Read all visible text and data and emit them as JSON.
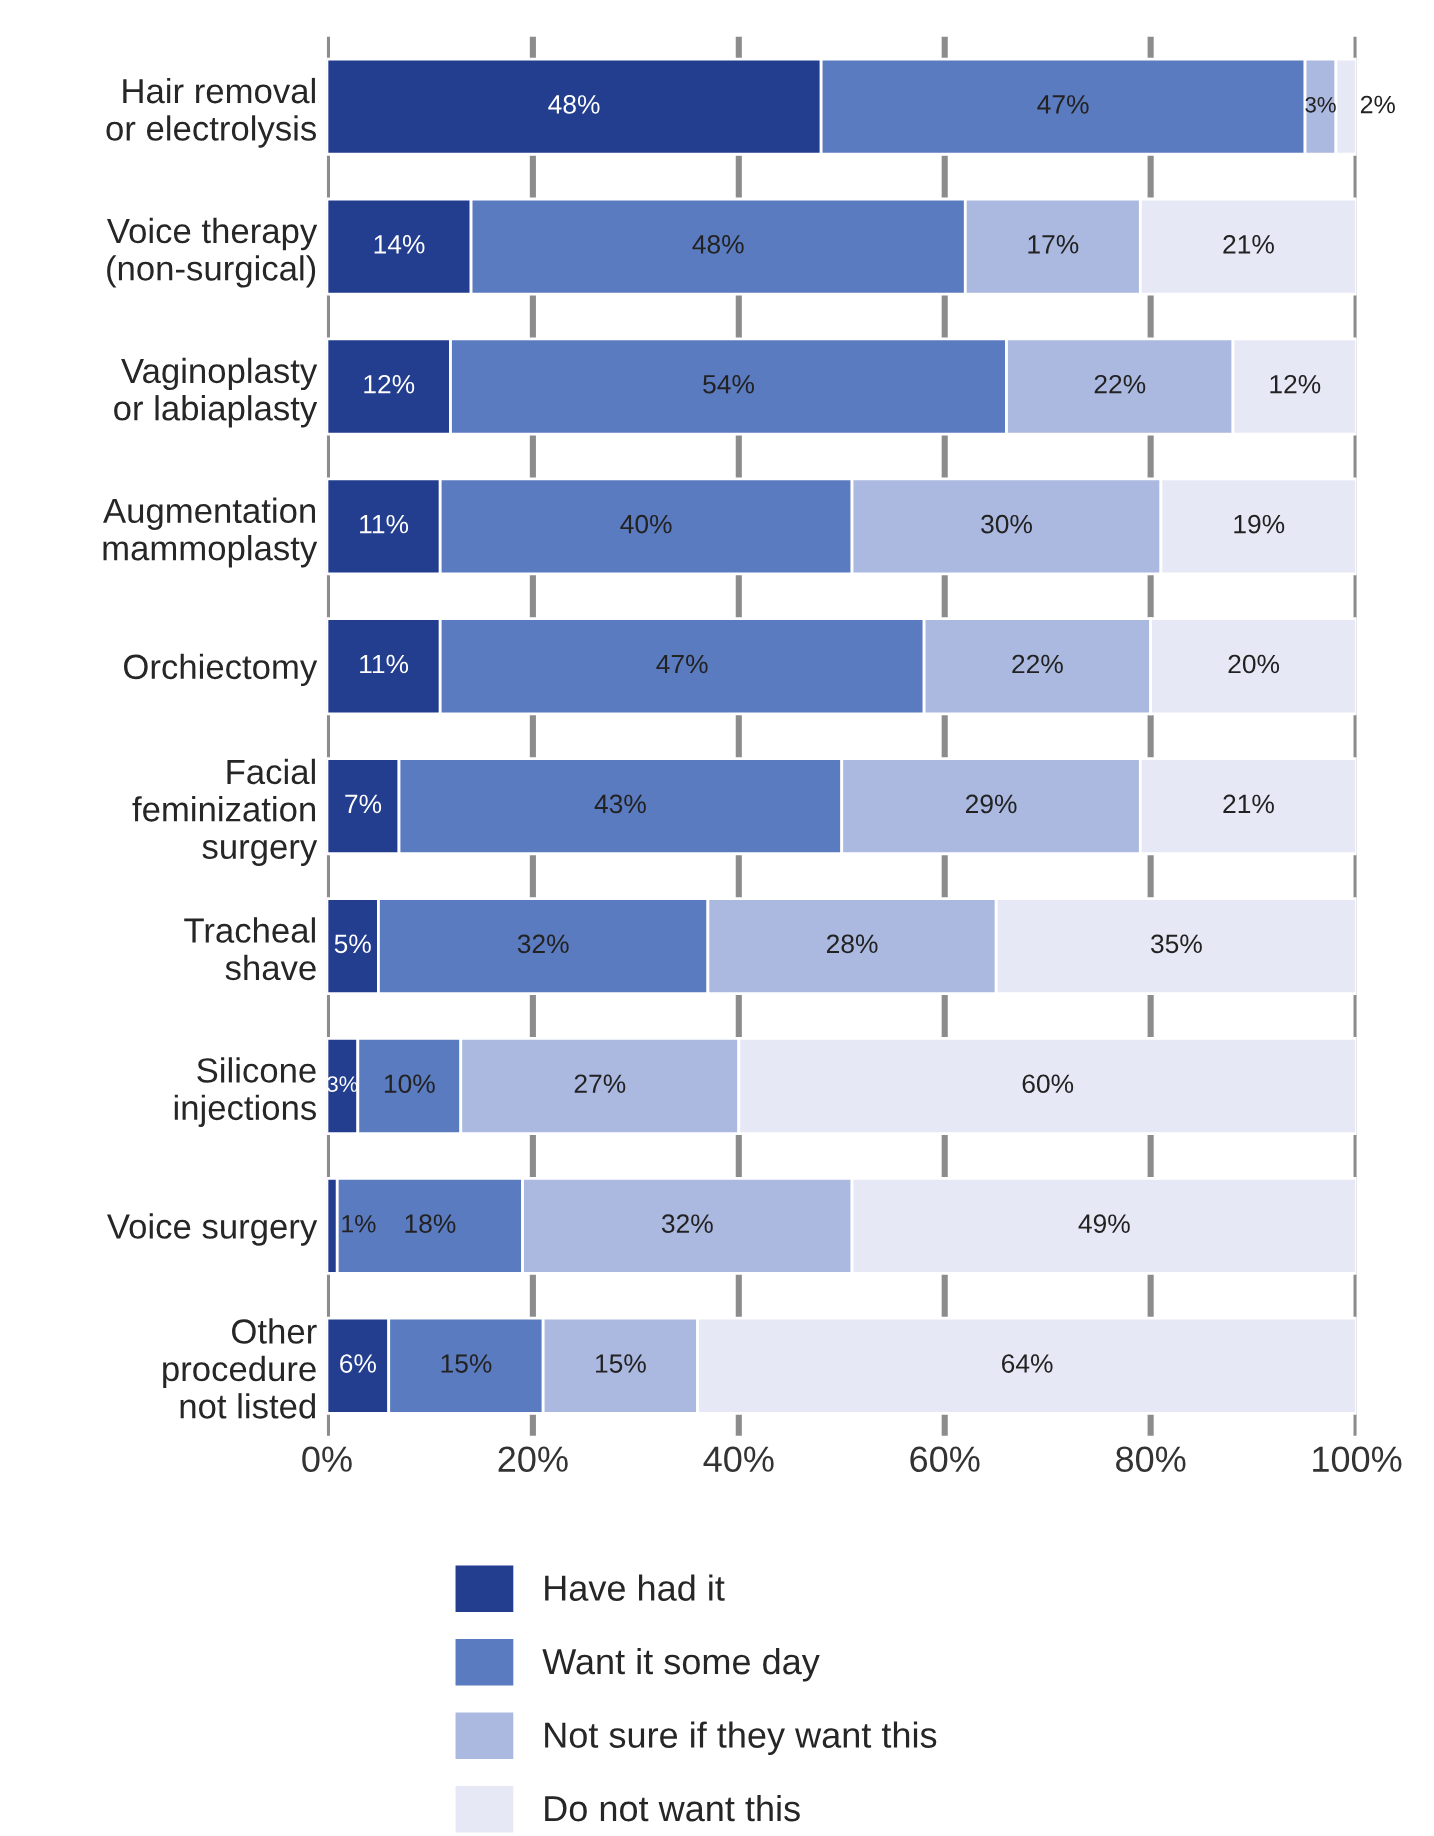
{
  "chart_data": {
    "type": "bar",
    "orientation": "horizontal",
    "stacked": true,
    "categories": [
      "Hair removal\nor electrolysis",
      "Voice therapy\n(non-surgical)",
      "Vaginoplasty\nor labiaplasty",
      "Augmentation\nmammoplasty",
      "Orchiectomy",
      "Facial\nfeminization\nsurgery",
      "Tracheal\nshave",
      "Silicone\ninjections",
      "Voice surgery",
      "Other\nprocedure\nnot listed"
    ],
    "series": [
      {
        "name": "Have had it",
        "color": "#233d8f",
        "values": [
          48,
          14,
          12,
          11,
          11,
          7,
          5,
          3,
          1,
          6
        ],
        "value_labels": [
          "48%",
          "14%",
          "12%",
          "11%",
          "11%",
          "7%",
          "5%",
          "3%",
          "1%",
          "6%"
        ]
      },
      {
        "name": "Want it some day",
        "color": "#5b7bc0",
        "values": [
          47,
          48,
          54,
          40,
          47,
          43,
          32,
          10,
          18,
          15
        ],
        "value_labels": [
          "47%",
          "48%",
          "54%",
          "40%",
          "47%",
          "43%",
          "32%",
          "10%",
          "18%",
          "15%"
        ]
      },
      {
        "name": "Not sure if they want this",
        "color": "#abb9e0",
        "values": [
          3,
          17,
          22,
          30,
          22,
          29,
          28,
          27,
          32,
          15
        ],
        "value_labels": [
          "3%",
          "17%",
          "22%",
          "30%",
          "22%",
          "29%",
          "28%",
          "27%",
          "32%",
          "15%"
        ]
      },
      {
        "name": "Do not want this",
        "color": "#e7e8f5",
        "values": [
          2,
          21,
          12,
          19,
          20,
          21,
          35,
          60,
          49,
          64
        ],
        "value_labels": [
          "2%",
          "21%",
          "12%",
          "19%",
          "20%",
          "21%",
          "35%",
          "60%",
          "49%",
          "64%"
        ]
      }
    ],
    "xlim": [
      0,
      100
    ],
    "xticks": [
      {
        "value": 0,
        "label": "0%"
      },
      {
        "value": 20,
        "label": "20%"
      },
      {
        "value": 40,
        "label": "40%"
      },
      {
        "value": 60,
        "label": "60%"
      },
      {
        "value": 80,
        "label": "80%"
      },
      {
        "value": 100,
        "label": "100%"
      }
    ],
    "grid": "x",
    "legend": "bottom"
  }
}
